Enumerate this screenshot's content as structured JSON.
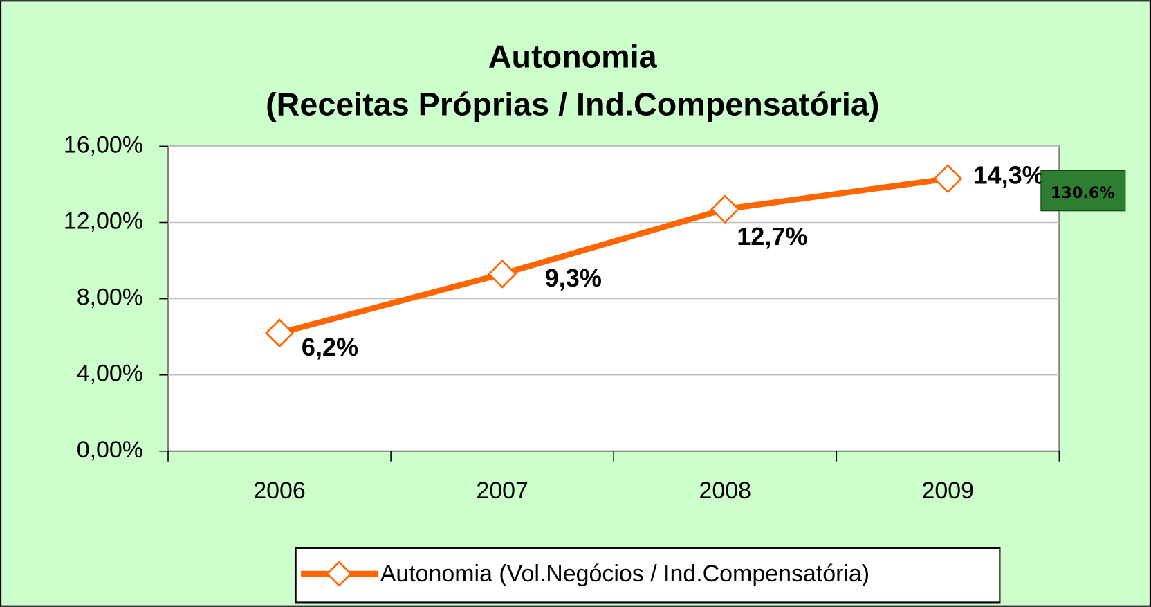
{
  "chart_data": {
    "type": "line",
    "title": "Autonomia",
    "subtitle": "(Receitas Próprias / Ind.Compensatória)",
    "categories": [
      "2006",
      "2007",
      "2008",
      "2009"
    ],
    "series": [
      {
        "name": "Autonomia (Vol.Negócios / Ind.Compensatória)",
        "color": "#ff6600",
        "values": [
          6.2,
          9.3,
          12.7,
          14.3
        ],
        "value_labels": [
          "6,2%",
          "9,3%",
          "12,7%",
          "14,3%"
        ]
      }
    ],
    "ylim": [
      0,
      16
    ],
    "yticks": [
      {
        "value": 0,
        "label": "0,00%"
      },
      {
        "value": 4,
        "label": "4,00%"
      },
      {
        "value": 8,
        "label": "8,00%"
      },
      {
        "value": 12,
        "label": "12,00%"
      },
      {
        "value": 16,
        "label": "16,00%"
      }
    ],
    "grid": true,
    "legend": "bottom",
    "annotations": [
      "130.6%"
    ]
  }
}
